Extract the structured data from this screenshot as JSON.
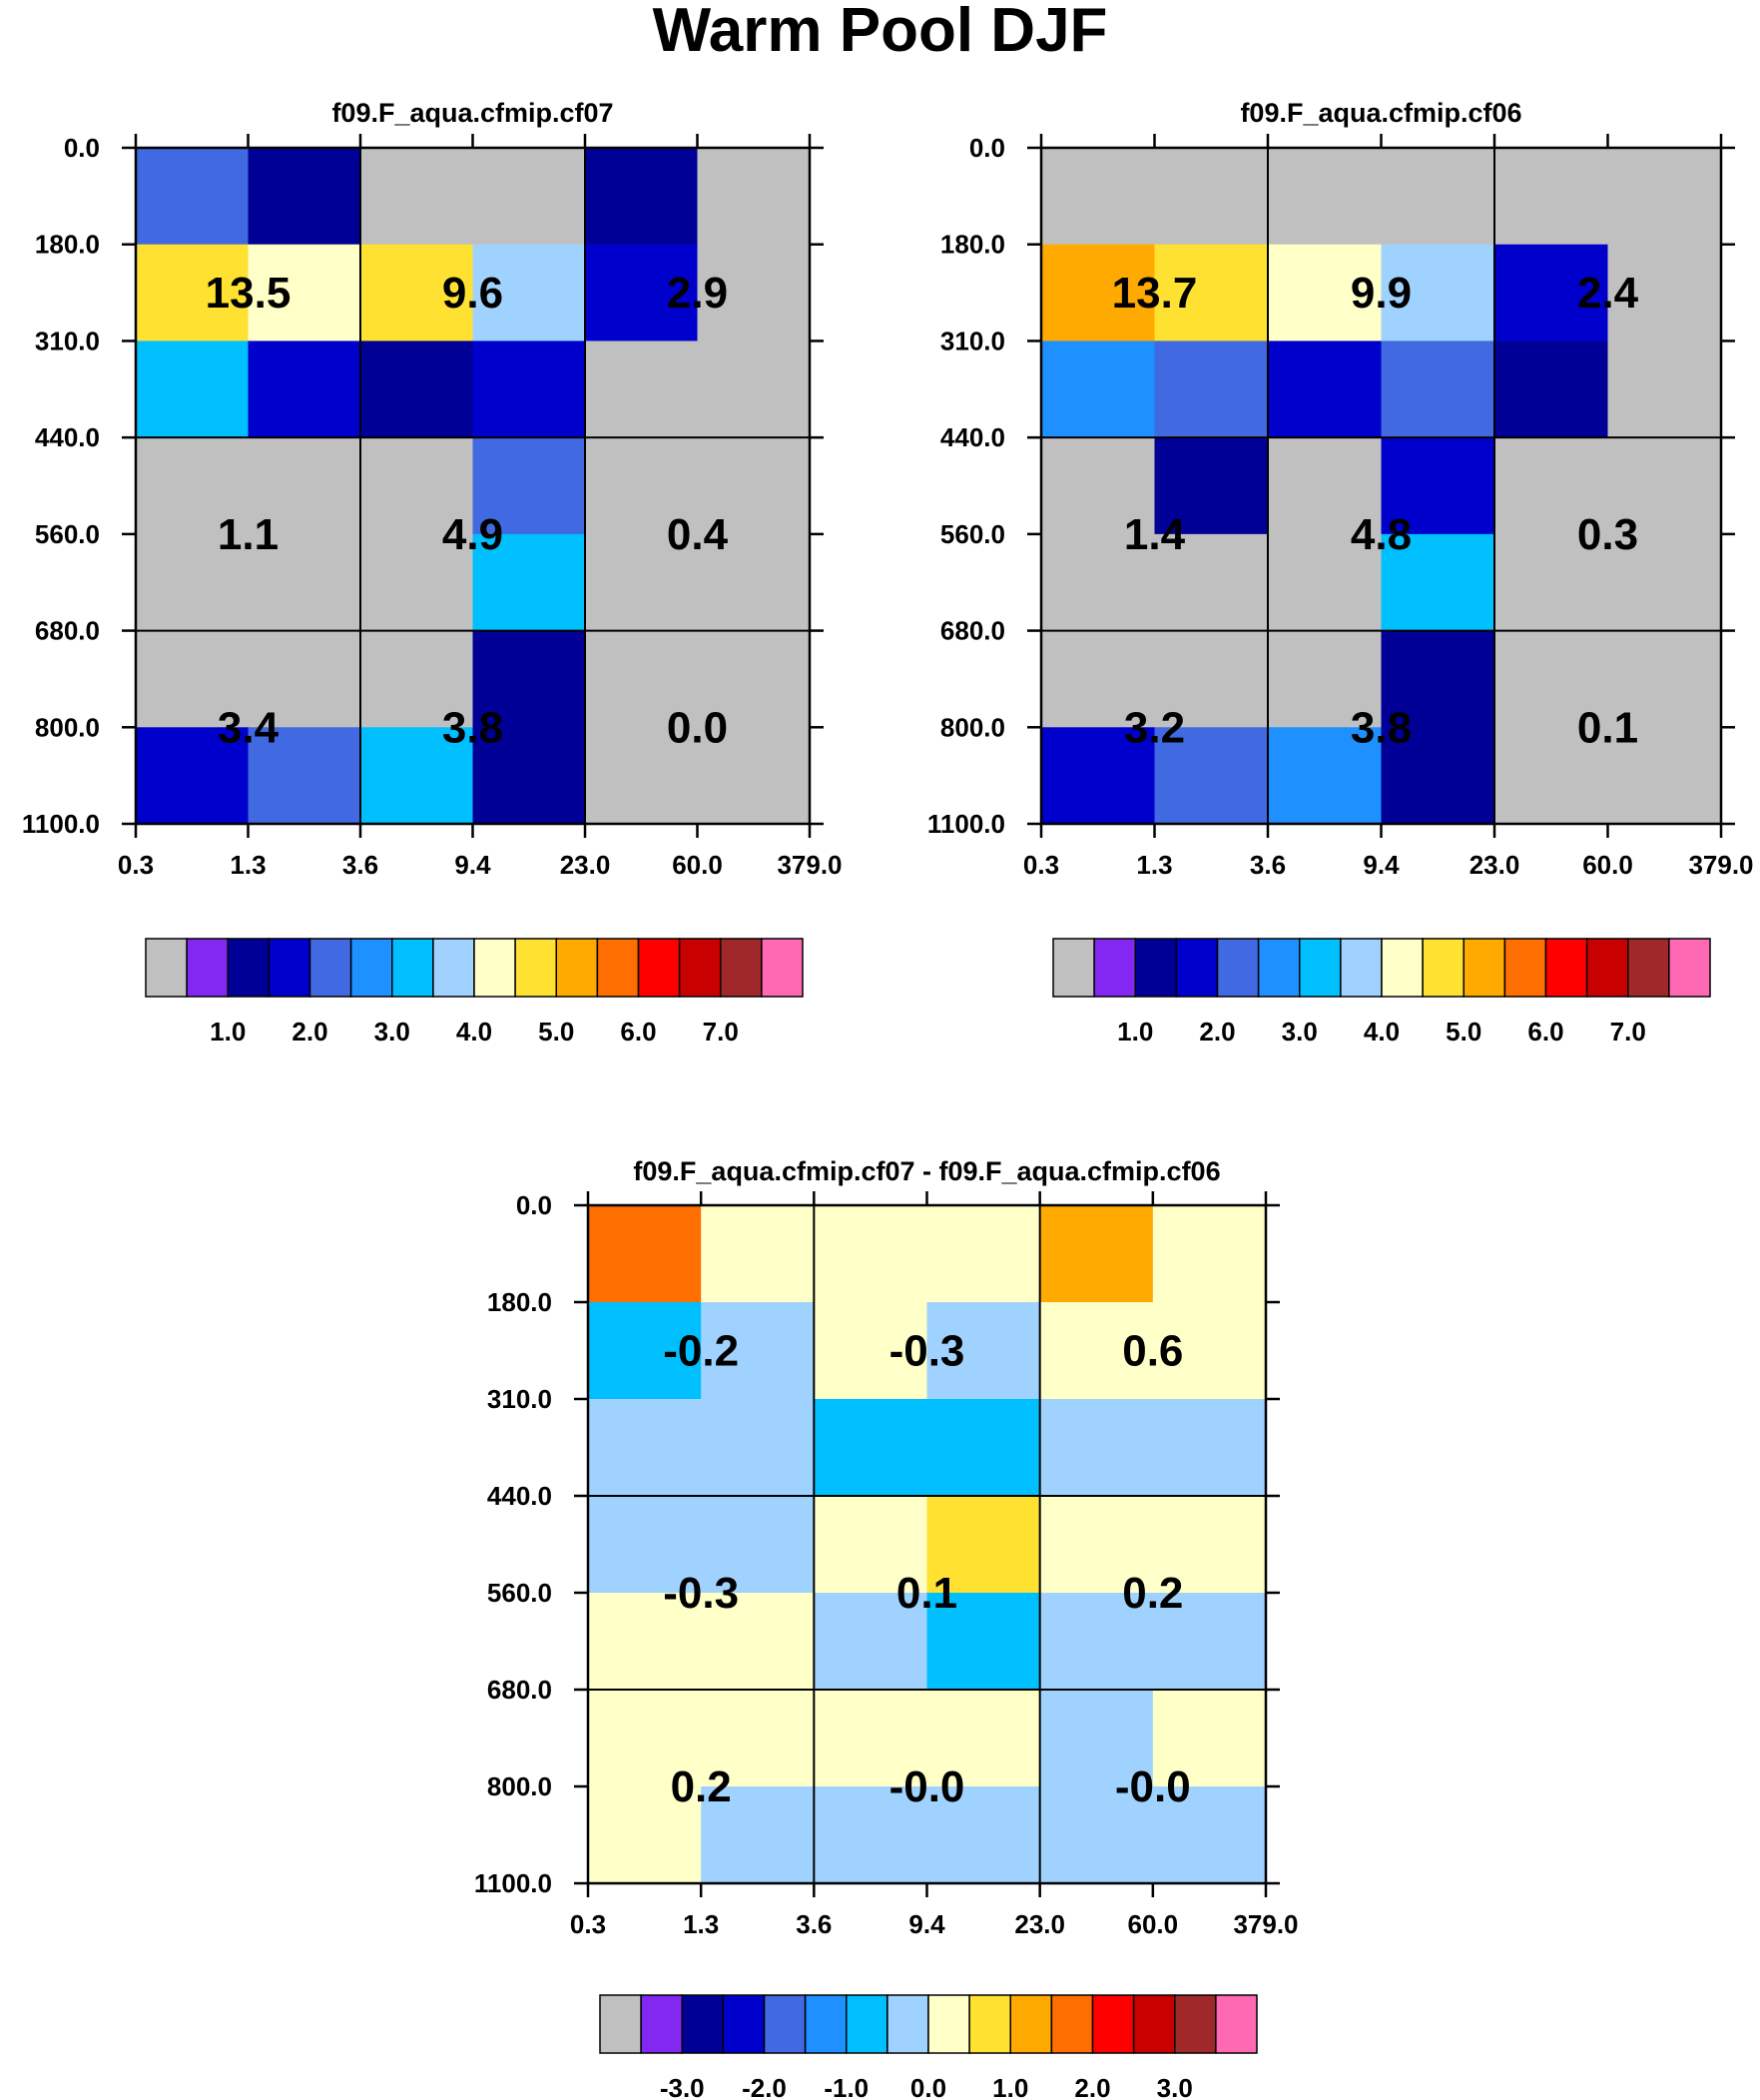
{
  "title": "Warm Pool DJF",
  "chart_data": [
    {
      "type": "heatmap",
      "title": "f09.F_aqua.cfmip.cf07",
      "x_ticks": [
        "0.3",
        "1.3",
        "3.6",
        "9.4",
        "23.0",
        "60.0",
        "379.0"
      ],
      "y_ticks": [
        "0.0",
        "180.0",
        "310.0",
        "440.0",
        "560.0",
        "680.0",
        "800.0",
        "1100.0"
      ],
      "cell_values": [
        [
          1.8,
          0.5,
          0.0,
          0.0,
          0.5,
          0.0
        ],
        [
          4.2,
          3.8,
          4.1,
          3.3,
          1.2,
          0.0
        ],
        [
          2.5,
          1.3,
          0.6,
          1.3,
          0.0,
          0.0
        ],
        [
          0.0,
          0.0,
          0.0,
          1.8,
          0.0,
          0.0
        ],
        [
          0.0,
          0.0,
          0.0,
          2.5,
          0.0,
          0.0
        ],
        [
          0.0,
          0.0,
          0.0,
          0.5,
          0.0,
          0.0
        ],
        [
          1.3,
          1.8,
          2.5,
          0.5,
          0.0,
          0.0
        ]
      ],
      "block_sums": [
        [
          "13.5",
          "9.6",
          "2.9"
        ],
        [
          "1.1",
          "4.9",
          "0.4"
        ],
        [
          "3.4",
          "3.8",
          "0.0"
        ]
      ],
      "colorbar": {
        "colors": [
          "#c0c0c0",
          "#8228f0",
          "#000096",
          "#0000cd",
          "#4169e1",
          "#1e90ff",
          "#00bfff",
          "#a0d2ff",
          "#ffffc8",
          "#ffe132",
          "#ffaa00",
          "#ff6e00",
          "#ff0000",
          "#c80000",
          "#a02828",
          "#ff69b4"
        ],
        "levels": [
          0.2,
          0.5,
          1.0,
          1.5,
          2.0,
          2.5,
          3.0,
          3.5,
          4.0,
          4.5,
          5.0,
          5.5,
          6.0,
          6.5,
          7.0
        ],
        "labels": [
          "1.0",
          "2.0",
          "3.0",
          "4.0",
          "5.0",
          "6.0",
          "7.0"
        ]
      }
    },
    {
      "type": "heatmap",
      "title": "f09.F_aqua.cfmip.cf06",
      "x_ticks": [
        "0.3",
        "1.3",
        "3.6",
        "9.4",
        "23.0",
        "60.0",
        "379.0"
      ],
      "y_ticks": [
        "0.0",
        "180.0",
        "310.0",
        "440.0",
        "560.0",
        "680.0",
        "800.0",
        "1100.0"
      ],
      "cell_values": [
        [
          0.0,
          0.0,
          0.0,
          0.0,
          0.0,
          0.0
        ],
        [
          4.7,
          4.2,
          3.8,
          3.3,
          1.2,
          0.0
        ],
        [
          2.3,
          1.8,
          1.3,
          1.8,
          0.7,
          0.0
        ],
        [
          0.0,
          0.7,
          0.0,
          1.2,
          0.0,
          0.0
        ],
        [
          0.0,
          0.0,
          0.0,
          2.7,
          0.0,
          0.0
        ],
        [
          0.0,
          0.0,
          0.0,
          0.7,
          0.0,
          0.0
        ],
        [
          1.3,
          1.8,
          2.3,
          0.7,
          0.0,
          0.0
        ]
      ],
      "block_sums": [
        [
          "13.7",
          "9.9",
          "2.4"
        ],
        [
          "1.4",
          "4.8",
          "0.3"
        ],
        [
          "3.2",
          "3.8",
          "0.1"
        ]
      ],
      "colorbar": {
        "colors": [
          "#c0c0c0",
          "#8228f0",
          "#000096",
          "#0000cd",
          "#4169e1",
          "#1e90ff",
          "#00bfff",
          "#a0d2ff",
          "#ffffc8",
          "#ffe132",
          "#ffaa00",
          "#ff6e00",
          "#ff0000",
          "#c80000",
          "#a02828",
          "#ff69b4"
        ],
        "levels": [
          0.2,
          0.5,
          1.0,
          1.5,
          2.0,
          2.5,
          3.0,
          3.5,
          4.0,
          4.5,
          5.0,
          5.5,
          6.0,
          6.5,
          7.0
        ],
        "labels": [
          "1.0",
          "2.0",
          "3.0",
          "4.0",
          "5.0",
          "6.0",
          "7.0"
        ]
      }
    },
    {
      "type": "heatmap",
      "title": "f09.F_aqua.cfmip.cf07 - f09.F_aqua.cfmip.cf06",
      "x_ticks": [
        "0.3",
        "1.3",
        "3.6",
        "9.4",
        "23.0",
        "60.0",
        "379.0"
      ],
      "y_ticks": [
        "0.0",
        "180.0",
        "310.0",
        "440.0",
        "560.0",
        "680.0",
        "800.0",
        "1100.0"
      ],
      "cell_values": [
        [
          1.7,
          0.3,
          0.3,
          0.3,
          1.2,
          0.3
        ],
        [
          -0.8,
          -0.3,
          0.3,
          -0.3,
          0.3,
          0.3
        ],
        [
          -0.3,
          -0.3,
          -0.8,
          -0.8,
          -0.3,
          -0.3
        ],
        [
          -0.3,
          -0.3,
          0.3,
          0.8,
          0.3,
          0.3
        ],
        [
          0.3,
          0.3,
          -0.3,
          -0.8,
          -0.3,
          -0.3
        ],
        [
          0.3,
          0.3,
          0.3,
          0.3,
          -0.3,
          0.3
        ],
        [
          0.3,
          -0.3,
          -0.3,
          -0.3,
          -0.3,
          -0.3
        ]
      ],
      "block_sums": [
        [
          "-0.2",
          "-0.3",
          "0.6"
        ],
        [
          "-0.3",
          "0.1",
          "0.2"
        ],
        [
          "0.2",
          "-0.0",
          "-0.0"
        ]
      ],
      "colorbar": {
        "colors": [
          "#c0c0c0",
          "#8228f0",
          "#000096",
          "#0000cd",
          "#4169e1",
          "#1e90ff",
          "#00bfff",
          "#a0d2ff",
          "#ffffc8",
          "#ffe132",
          "#ffaa00",
          "#ff6e00",
          "#ff0000",
          "#c80000",
          "#a02828",
          "#ff69b4"
        ],
        "levels": [
          -3.5,
          -3.0,
          -2.5,
          -2.0,
          -1.5,
          -1.0,
          -0.5,
          0.0,
          0.5,
          1.0,
          1.5,
          2.0,
          2.5,
          3.0,
          3.5
        ],
        "labels": [
          "-3.0",
          "-2.0",
          "-1.0",
          "0.0",
          "1.0",
          "2.0",
          "3.0"
        ]
      }
    }
  ]
}
